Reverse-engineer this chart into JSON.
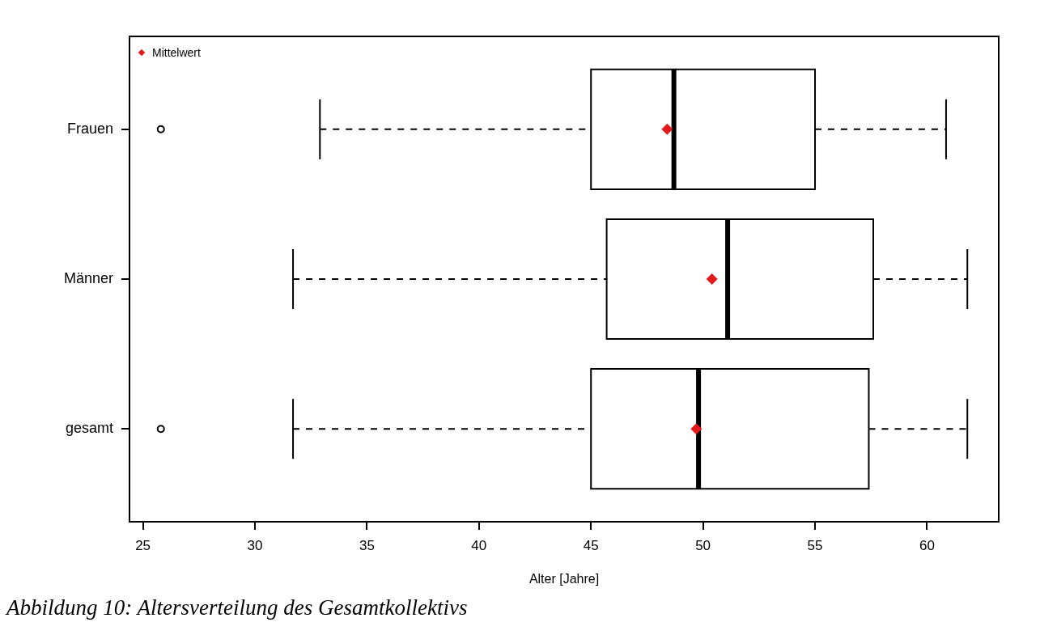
{
  "chart_data": {
    "type": "box",
    "orientation": "horizontal",
    "xlabel": "Alter [Jahre]",
    "categories": [
      "Frauen",
      "Männer",
      "gesamt"
    ],
    "boxes": [
      {
        "low": 32.9,
        "q1": 45.0,
        "median": 48.7,
        "q3": 55.0,
        "high": 60.85,
        "outliers": [
          25.8
        ]
      },
      {
        "low": 31.7,
        "q1": 45.7,
        "median": 51.1,
        "q3": 57.6,
        "high": 61.8
      },
      {
        "low": 31.7,
        "q1": 45.0,
        "median": 49.8,
        "q3": 57.4,
        "high": 61.8,
        "outliers": [
          25.8
        ]
      }
    ],
    "series": [
      {
        "name": "Mittelwert",
        "type": "scatter",
        "color": "#e31a1c",
        "values": [
          48.4,
          50.4,
          49.7
        ]
      }
    ],
    "xlim": [
      24.4,
      63.2
    ],
    "xticks": [
      25,
      30,
      35,
      40,
      45,
      50,
      55,
      60
    ],
    "marker": "diamond",
    "legend": "top left",
    "grid": false,
    "annotations": [
      "Abbildung 10: Altersverteilung des Gesamtkollektivs"
    ]
  }
}
